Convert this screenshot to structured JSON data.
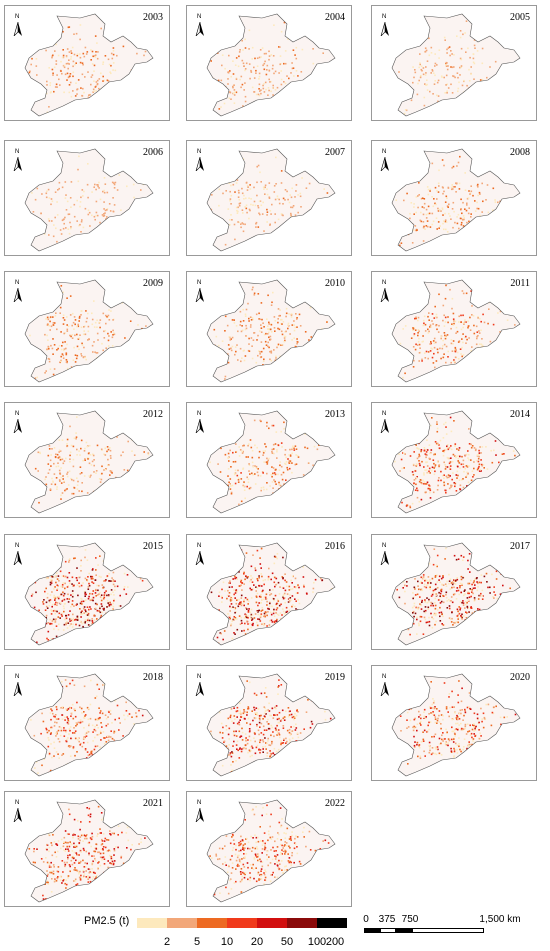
{
  "map": {
    "panels": [
      {
        "year": "2003",
        "level": 0.22
      },
      {
        "year": "2004",
        "level": 0.2
      },
      {
        "year": "2005",
        "level": 0.16
      },
      {
        "year": "2006",
        "level": 0.12
      },
      {
        "year": "2007",
        "level": 0.18
      },
      {
        "year": "2008",
        "level": 0.26
      },
      {
        "year": "2009",
        "level": 0.28
      },
      {
        "year": "2010",
        "level": 0.3
      },
      {
        "year": "2011",
        "level": 0.36
      },
      {
        "year": "2012",
        "level": 0.26
      },
      {
        "year": "2013",
        "level": 0.34
      },
      {
        "year": "2014",
        "level": 0.55
      },
      {
        "year": "2015",
        "level": 0.8
      },
      {
        "year": "2016",
        "level": 0.72
      },
      {
        "year": "2017",
        "level": 0.74
      },
      {
        "year": "2018",
        "level": 0.48
      },
      {
        "year": "2019",
        "level": 0.62
      },
      {
        "year": "2020",
        "level": 0.5
      },
      {
        "year": "2021",
        "level": 0.6
      },
      {
        "year": "2022",
        "level": 0.52
      }
    ],
    "north_label": "N",
    "legend": {
      "title": "PM2.5 (t)",
      "colors": [
        "#fde9bd",
        "#f2a779",
        "#ed6a22",
        "#f03a1b",
        "#d20f0f",
        "#8a0a0a",
        "#000000"
      ],
      "ticks": [
        "2",
        "5",
        "10",
        "20",
        "50",
        "100",
        "200"
      ]
    },
    "scale_bar": {
      "labels": [
        "0",
        "375",
        "750",
        "1,500 km"
      ]
    }
  }
}
